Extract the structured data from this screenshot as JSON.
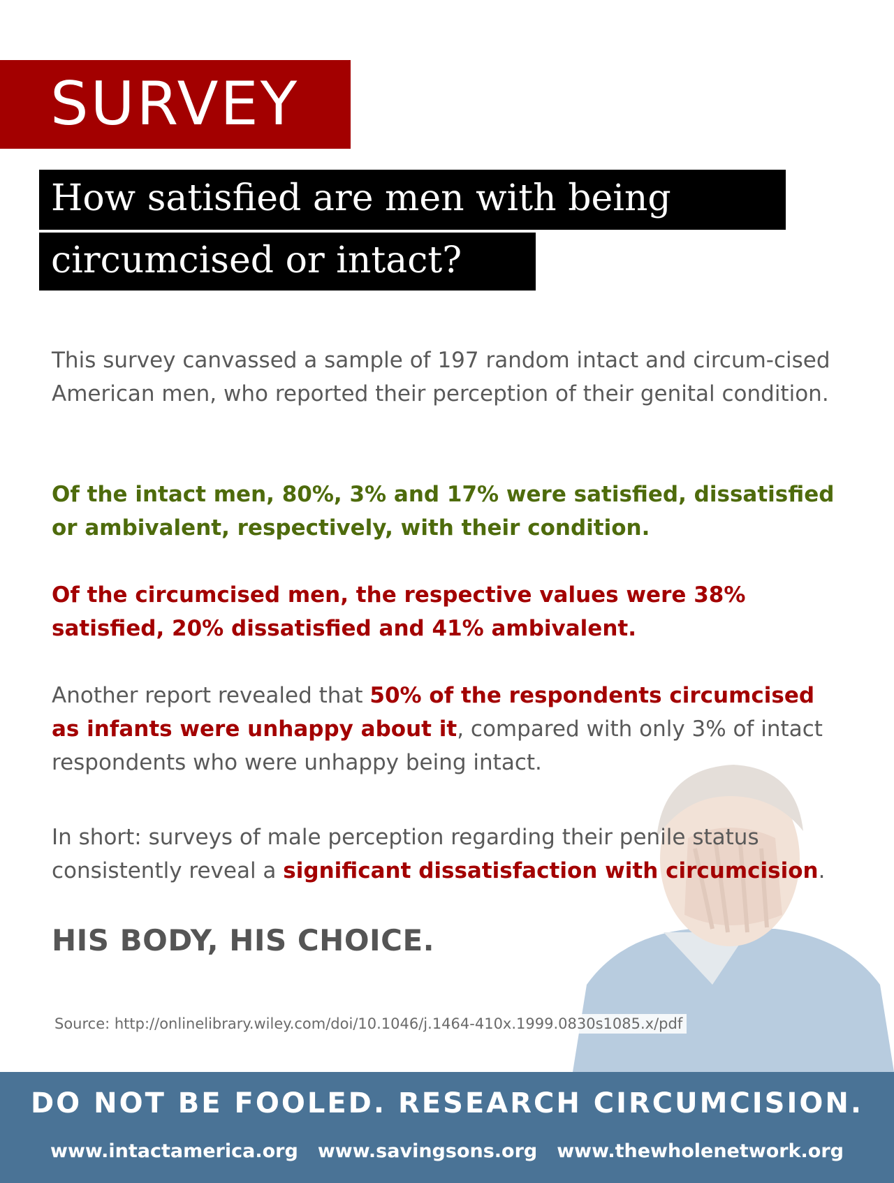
{
  "banner": {
    "label": "SURVEY",
    "color": "#a30000"
  },
  "headline": {
    "line1": "How satisfied are men with being",
    "line2": "circumcised or intact?"
  },
  "intro": "This survey canvassed a sample of 197 random intact and circum-cised American men, who reported their perception of their genital condition.",
  "intact_finding": "Of the intact men, 80%, 3% and 17% were satisfied, dissatisfied or ambivalent, respectively, with their condition.",
  "circumcised_finding": "Of the circumcised men, the respective values were 38% satisfied, 20% dissatisfied and 41% ambivalent.",
  "report": {
    "prefix": "Another report revealed that ",
    "highlight": "50% of the respondents circumcised as infants were unhappy about it",
    "suffix": ", compared with only 3% of intact respondents who were unhappy being intact."
  },
  "summary": {
    "prefix": "In short: surveys of male perception regarding their penile status consistently reveal a ",
    "highlight": "significant dissatisfaction with circumcision",
    "suffix": "."
  },
  "tagline": "HIS BODY, HIS CHOICE.",
  "source": "Source: http://onlinelibrary.wiley.com/doi/10.1046/j.1464-410x.1999.0830s1085.x/pdf",
  "footer": {
    "slogan": "DO NOT BE FOOLED. RESEARCH CIRCUMCISION.",
    "links": [
      "www.intactamerica.org",
      "www.savingsons.org",
      "www.thewholenetwork.org"
    ]
  },
  "colors": {
    "green": "#4e6b0c",
    "red": "#a30000",
    "footer": "#4a7396"
  }
}
